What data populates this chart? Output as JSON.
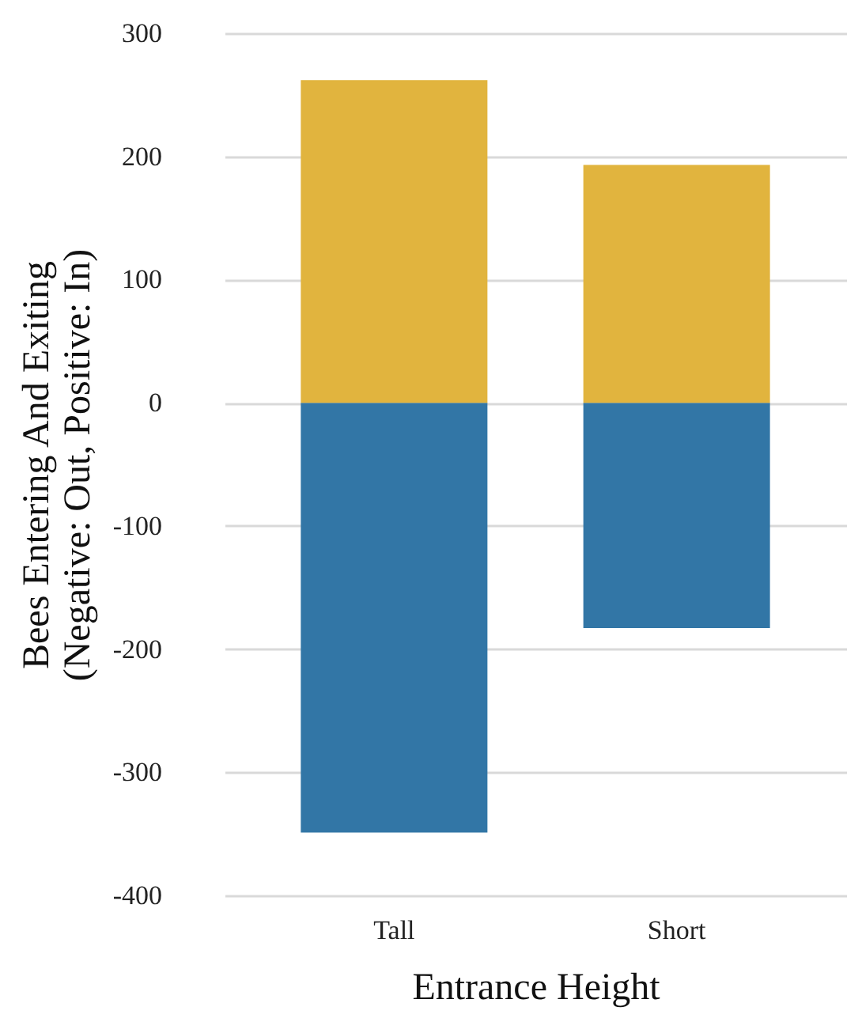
{
  "chart_data": {
    "type": "bar",
    "stacked": true,
    "xlabel": "Entrance Height",
    "ylabel": "Bees Entering And Exiting\n(Negative: Out, Positive: In)",
    "categories": [
      "Tall",
      "Short"
    ],
    "series": [
      {
        "color": "#3276a6",
        "values": [
          -349,
          -183
        ]
      },
      {
        "color": "#e1b43e",
        "values": [
          262,
          193
        ]
      }
    ],
    "ylim": [
      -400,
      300
    ],
    "yticks": [
      -400,
      -300,
      -200,
      -100,
      0,
      100,
      200,
      300
    ],
    "grid": "y",
    "legend": false
  }
}
